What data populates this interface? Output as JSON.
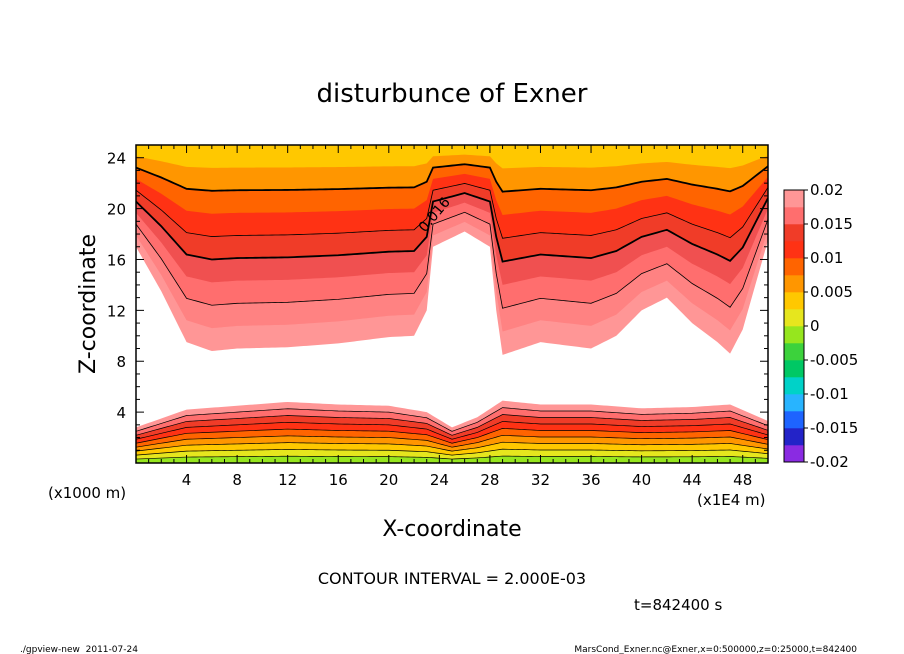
{
  "chart_data": {
    "type": "contour",
    "title": "disturbunce of Exner",
    "xlabel": "X-coordinate",
    "ylabel": "Z-coordinate",
    "x_unit_label": "(x1E4 m)",
    "y_unit_label": "(x1000 m)",
    "xlim": [
      0,
      50
    ],
    "ylim": [
      0,
      25
    ],
    "x_ticks": [
      4,
      8,
      12,
      16,
      20,
      24,
      28,
      32,
      36,
      40,
      44,
      48
    ],
    "y_ticks": [
      4,
      8,
      12,
      16,
      20,
      24
    ],
    "x_tick_labels": [
      "4",
      "8",
      "12",
      "16",
      "20",
      "24",
      "28",
      "32",
      "36",
      "40",
      "44",
      "48"
    ],
    "y_tick_labels": [
      "4",
      "8",
      "12",
      "16",
      "20",
      "24"
    ],
    "contour_label": "0.016",
    "contour_interval_text": "CONTOUR INTERVAL = 2.000E-03",
    "time_text": "t=842400 s",
    "footer_left": "./gpview-new  2011-07-24",
    "footer_right": "MarsCond_Exner.nc@Exner,x=0:500000,z=0:25000,t=842400",
    "colorbar": {
      "labels": [
        "0.02",
        "0.015",
        "0.01",
        "0.005",
        "0",
        "-0.005",
        "-0.01",
        "-0.015",
        "-0.02"
      ],
      "colors": [
        "#8a2be2",
        "#2323c8",
        "#1e64ff",
        "#28b4ff",
        "#00d2c8",
        "#00c864",
        "#3cd23c",
        "#96e61e",
        "#e6e61e",
        "#ffc800",
        "#ff9600",
        "#ff6400",
        "#ff3214",
        "#f03c28",
        "#ff6e6e",
        "#ff9696"
      ]
    },
    "upper_band": [
      {
        "x": 0,
        "bottom": 17.0
      },
      {
        "x": 2,
        "bottom": 13.5
      },
      {
        "x": 4,
        "bottom": 9.5
      },
      {
        "x": 6,
        "bottom": 8.8
      },
      {
        "x": 8,
        "bottom": 9.0
      },
      {
        "x": 12,
        "bottom": 9.1
      },
      {
        "x": 16,
        "bottom": 9.4
      },
      {
        "x": 20,
        "bottom": 9.9
      },
      {
        "x": 22,
        "bottom": 10.0
      },
      {
        "x": 23,
        "bottom": 12.0
      },
      {
        "x": 23.5,
        "bottom": 17.0
      },
      {
        "x": 26,
        "bottom": 18.2
      },
      {
        "x": 28,
        "bottom": 17.0
      },
      {
        "x": 28.5,
        "bottom": 12.0
      },
      {
        "x": 29,
        "bottom": 8.5
      },
      {
        "x": 32,
        "bottom": 9.5
      },
      {
        "x": 36,
        "bottom": 9.0
      },
      {
        "x": 38,
        "bottom": 10.0
      },
      {
        "x": 40,
        "bottom": 12.0
      },
      {
        "x": 42,
        "bottom": 13.0
      },
      {
        "x": 44,
        "bottom": 11.0
      },
      {
        "x": 46,
        "bottom": 9.5
      },
      {
        "x": 47,
        "bottom": 8.6
      },
      {
        "x": 48,
        "bottom": 10.5
      },
      {
        "x": 50,
        "bottom": 17.5
      }
    ],
    "lower_band_top": [
      {
        "x": 0,
        "top": 2.8
      },
      {
        "x": 4,
        "top": 4.2
      },
      {
        "x": 8,
        "top": 4.5
      },
      {
        "x": 12,
        "top": 4.8
      },
      {
        "x": 16,
        "top": 4.6
      },
      {
        "x": 20,
        "top": 4.5
      },
      {
        "x": 23,
        "top": 4.0
      },
      {
        "x": 25,
        "top": 2.8
      },
      {
        "x": 27,
        "top": 3.6
      },
      {
        "x": 29,
        "top": 4.9
      },
      {
        "x": 32,
        "top": 4.6
      },
      {
        "x": 36,
        "top": 4.6
      },
      {
        "x": 40,
        "top": 4.3
      },
      {
        "x": 44,
        "top": 4.4
      },
      {
        "x": 47,
        "top": 4.6
      },
      {
        "x": 50,
        "top": 3.3
      }
    ]
  }
}
